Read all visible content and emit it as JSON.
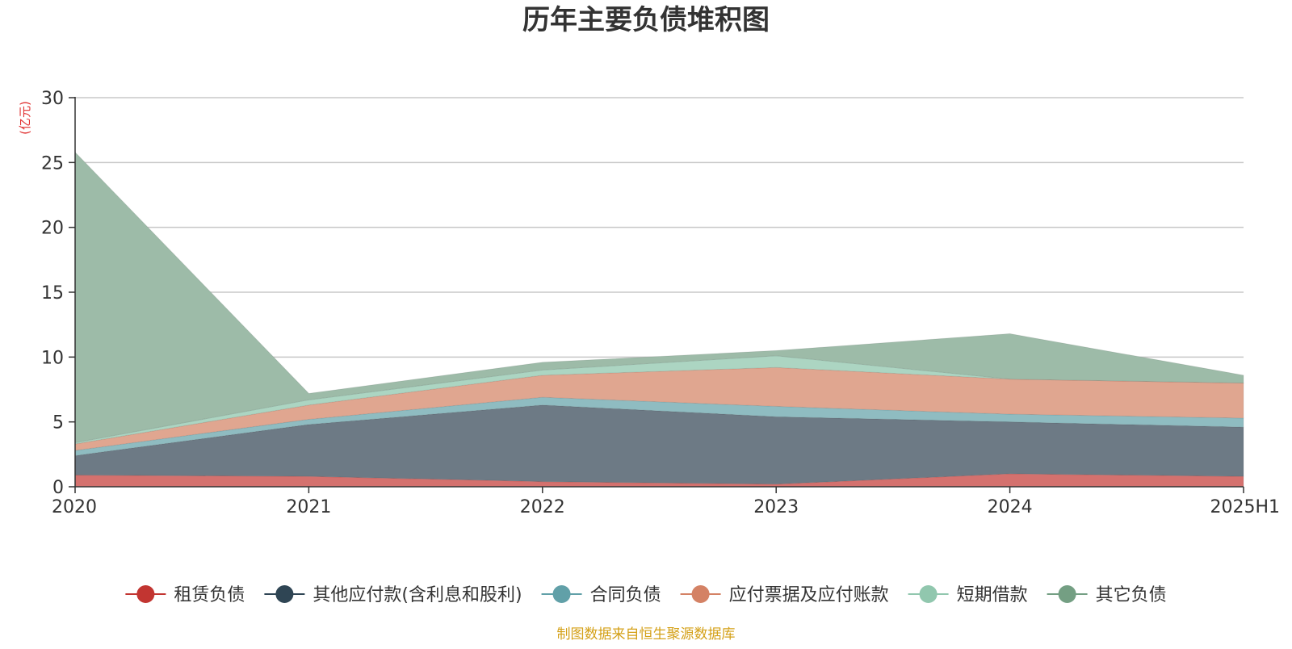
{
  "chart_data": {
    "type": "area",
    "stacked": true,
    "title": "历年主要负债堆积图",
    "unit_label": "(亿元)",
    "x": [
      "2020",
      "2021",
      "2022",
      "2023",
      "2024",
      "2025H1"
    ],
    "ylim": [
      0,
      30
    ],
    "y_ticks": [
      "0",
      "5",
      "10",
      "15",
      "20",
      "25",
      "30"
    ],
    "grid": true,
    "legend_position": "bottom",
    "series": [
      {
        "name": "租赁负债",
        "color": "#c23531",
        "fill": "#d4716e",
        "values": [
          0.9,
          0.8,
          0.4,
          0.2,
          1.0,
          0.8
        ]
      },
      {
        "name": "其他应付款(含利息和股利)",
        "color": "#2f4554",
        "fill": "#6d7a85",
        "values": [
          1.5,
          4.0,
          5.9,
          5.2,
          4.0,
          3.8
        ]
      },
      {
        "name": "合同负债",
        "color": "#61a0a8",
        "fill": "#8fbcc1",
        "values": [
          0.4,
          0.4,
          0.6,
          0.8,
          0.6,
          0.7
        ]
      },
      {
        "name": "应付票据及应付账款",
        "color": "#d48265",
        "fill": "#e0a690",
        "values": [
          0.5,
          1.1,
          1.7,
          3.0,
          2.7,
          2.7
        ]
      },
      {
        "name": "短期借款",
        "color": "#91c7ae",
        "fill": "#acd5c2",
        "values": [
          0.1,
          0.4,
          0.4,
          0.9,
          0.0,
          0.0
        ]
      },
      {
        "name": "其它负债",
        "color": "#749f83",
        "fill": "#9dbba8",
        "values": [
          22.4,
          0.5,
          0.6,
          0.4,
          3.5,
          0.6
        ]
      }
    ]
  },
  "footer": {
    "source": "制图数据来自恒生聚源数据库"
  }
}
